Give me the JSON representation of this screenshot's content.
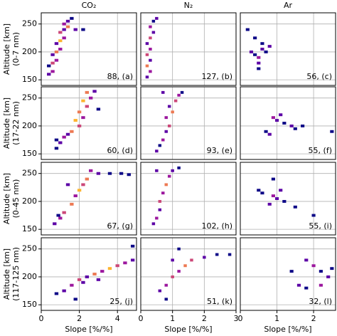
{
  "chart_data": [
    {
      "type": "heatmap",
      "title": "CO₂",
      "ylabel": [
        "Altitude [km]",
        "(0-7 nm)"
      ],
      "annotation": "88, (a)",
      "xlim": [
        0,
        5
      ],
      "ylim": [
        140,
        270
      ],
      "xticks": [
        0,
        2,
        4
      ],
      "yticks": [
        150,
        200,
        250
      ],
      "dx": 0.2,
      "dy": 5,
      "cells": [
        [
          0.4,
          160,
          2
        ],
        [
          0.6,
          165,
          3
        ],
        [
          0.4,
          175,
          1
        ],
        [
          0.6,
          180,
          4
        ],
        [
          0.8,
          185,
          3
        ],
        [
          0.6,
          195,
          2
        ],
        [
          0.8,
          200,
          5
        ],
        [
          1.0,
          205,
          3
        ],
        [
          0.8,
          215,
          2
        ],
        [
          1.0,
          220,
          6
        ],
        [
          1.2,
          225,
          3
        ],
        [
          1.0,
          235,
          4
        ],
        [
          1.2,
          240,
          2
        ],
        [
          1.4,
          245,
          5
        ],
        [
          1.2,
          250,
          3
        ],
        [
          1.4,
          255,
          2
        ],
        [
          1.6,
          260,
          1
        ],
        [
          2.2,
          240,
          1
        ],
        [
          1.8,
          240,
          2
        ]
      ]
    },
    {
      "type": "heatmap",
      "title": "N₂",
      "annotation": "127, (b)",
      "xlim": [
        0,
        3
      ],
      "ylim": [
        140,
        270
      ],
      "xticks": [
        0,
        1,
        2,
        3
      ],
      "yticks": [
        150,
        200,
        250
      ],
      "dx": 0.1,
      "dy": 5,
      "cells": [
        [
          0.2,
          155,
          2
        ],
        [
          0.3,
          165,
          3
        ],
        [
          0.2,
          175,
          5
        ],
        [
          0.3,
          185,
          2
        ],
        [
          0.2,
          195,
          4
        ],
        [
          0.3,
          205,
          3
        ],
        [
          0.2,
          215,
          2
        ],
        [
          0.3,
          225,
          4
        ],
        [
          0.4,
          235,
          2
        ],
        [
          0.3,
          245,
          3
        ],
        [
          0.4,
          255,
          1
        ],
        [
          0.5,
          260,
          2
        ]
      ]
    },
    {
      "type": "heatmap",
      "title": "Ar",
      "annotation": "56, (c)",
      "xlim": [
        0,
        2.6
      ],
      "ylim": [
        140,
        270
      ],
      "xticks": [
        0,
        1,
        2
      ],
      "yticks": [
        150,
        200,
        250
      ],
      "dx": 0.1,
      "dy": 5,
      "cells": [
        [
          0.3,
          200,
          2
        ],
        [
          0.4,
          195,
          1
        ],
        [
          0.5,
          190,
          3
        ],
        [
          0.6,
          205,
          2
        ],
        [
          0.7,
          200,
          1
        ],
        [
          0.8,
          210,
          2
        ],
        [
          0.6,
          215,
          1
        ],
        [
          0.2,
          240,
          1
        ],
        [
          0.4,
          225,
          1
        ],
        [
          0.5,
          170,
          1
        ],
        [
          0.5,
          180,
          2
        ]
      ]
    },
    {
      "type": "heatmap",
      "ylabel": [
        "Altitude [km]",
        "(17-22 nm)"
      ],
      "annotation": "60, (d)",
      "xlim": [
        0,
        5
      ],
      "ylim": [
        140,
        270
      ],
      "xticks": [
        0,
        2,
        4
      ],
      "yticks": [
        150,
        200,
        250
      ],
      "dx": 0.2,
      "dy": 5,
      "cells": [
        [
          0.8,
          160,
          1
        ],
        [
          1.0,
          170,
          2
        ],
        [
          1.2,
          180,
          3
        ],
        [
          1.6,
          190,
          5
        ],
        [
          2.0,
          200,
          4
        ],
        [
          1.8,
          210,
          6
        ],
        [
          2.2,
          215,
          3
        ],
        [
          2.0,
          225,
          5
        ],
        [
          2.4,
          235,
          4
        ],
        [
          2.2,
          245,
          6
        ],
        [
          2.6,
          250,
          3
        ],
        [
          2.4,
          260,
          5
        ],
        [
          2.8,
          262,
          2
        ],
        [
          3.0,
          230,
          1
        ],
        [
          1.4,
          185,
          2
        ],
        [
          0.8,
          175,
          1
        ]
      ]
    },
    {
      "type": "heatmap",
      "annotation": "93, (e)",
      "xlim": [
        0,
        3
      ],
      "ylim": [
        140,
        270
      ],
      "xticks": [
        0,
        1,
        2,
        3
      ],
      "yticks": [
        150,
        200,
        250
      ],
      "dx": 0.1,
      "dy": 5,
      "cells": [
        [
          0.5,
          155,
          2
        ],
        [
          0.6,
          165,
          1
        ],
        [
          0.7,
          175,
          3
        ],
        [
          0.8,
          190,
          2
        ],
        [
          0.9,
          200,
          4
        ],
        [
          0.8,
          215,
          3
        ],
        [
          1.0,
          225,
          5
        ],
        [
          0.9,
          235,
          2
        ],
        [
          1.1,
          245,
          4
        ],
        [
          1.2,
          255,
          3
        ],
        [
          1.3,
          260,
          1
        ],
        [
          0.7,
          260,
          2
        ]
      ]
    },
    {
      "type": "heatmap",
      "annotation": "55, (f)",
      "xlim": [
        0,
        2.6
      ],
      "ylim": [
        140,
        270
      ],
      "xticks": [
        0,
        1,
        2
      ],
      "yticks": [
        150,
        200,
        250
      ],
      "dx": 0.1,
      "dy": 5,
      "cells": [
        [
          1.0,
          210,
          2
        ],
        [
          1.2,
          205,
          1
        ],
        [
          1.4,
          200,
          2
        ],
        [
          1.7,
          200,
          1
        ],
        [
          0.9,
          215,
          3
        ],
        [
          1.1,
          220,
          2
        ],
        [
          0.7,
          190,
          1
        ],
        [
          0.8,
          185,
          2
        ],
        [
          1.5,
          195,
          1
        ],
        [
          2.5,
          190,
          1
        ]
      ]
    },
    {
      "type": "heatmap",
      "ylabel": [
        "Altitude [km]",
        "(0-45 nm)"
      ],
      "annotation": "67, (g)",
      "xlim": [
        0,
        5
      ],
      "ylim": [
        140,
        270
      ],
      "xticks": [
        0,
        2,
        4
      ],
      "yticks": [
        150,
        200,
        250
      ],
      "dx": 0.2,
      "dy": 5,
      "cells": [
        [
          0.7,
          160,
          2
        ],
        [
          1.0,
          170,
          3
        ],
        [
          1.2,
          180,
          4
        ],
        [
          1.6,
          195,
          5
        ],
        [
          1.8,
          210,
          3
        ],
        [
          2.0,
          220,
          6
        ],
        [
          2.2,
          230,
          4
        ],
        [
          2.4,
          240,
          5
        ],
        [
          2.6,
          255,
          3
        ],
        [
          3.0,
          250,
          2
        ],
        [
          3.6,
          250,
          1
        ],
        [
          4.2,
          250,
          1
        ],
        [
          4.6,
          248,
          1
        ],
        [
          1.4,
          230,
          2
        ],
        [
          0.9,
          175,
          1
        ]
      ]
    },
    {
      "type": "heatmap",
      "annotation": "102, (h)",
      "xlim": [
        0,
        3
      ],
      "ylim": [
        140,
        270
      ],
      "xticks": [
        0,
        1,
        2,
        3
      ],
      "yticks": [
        150,
        200,
        250
      ],
      "dx": 0.1,
      "dy": 5,
      "cells": [
        [
          0.4,
          160,
          2
        ],
        [
          0.5,
          170,
          3
        ],
        [
          0.6,
          185,
          2
        ],
        [
          0.6,
          200,
          4
        ],
        [
          0.7,
          215,
          3
        ],
        [
          0.8,
          230,
          5
        ],
        [
          0.9,
          245,
          3
        ],
        [
          1.0,
          255,
          2
        ],
        [
          1.2,
          260,
          1
        ],
        [
          0.5,
          255,
          2
        ]
      ]
    },
    {
      "type": "heatmap",
      "annotation": "55, (i)",
      "xlim": [
        0,
        2.6
      ],
      "ylim": [
        140,
        270
      ],
      "xticks": [
        0,
        1,
        2
      ],
      "yticks": [
        150,
        200,
        250
      ],
      "dx": 0.1,
      "dy": 5,
      "cells": [
        [
          0.9,
          210,
          3
        ],
        [
          1.0,
          205,
          2
        ],
        [
          1.2,
          200,
          1
        ],
        [
          0.6,
          215,
          1
        ],
        [
          0.8,
          195,
          2
        ],
        [
          1.5,
          190,
          1
        ],
        [
          0.9,
          240,
          1
        ],
        [
          1.1,
          220,
          2
        ],
        [
          2.0,
          175,
          1
        ],
        [
          0.5,
          220,
          1
        ]
      ]
    },
    {
      "type": "heatmap",
      "ylabel": [
        "Altitude [km]",
        "(117-125 nm)"
      ],
      "xlabel": "Slope [%/%]",
      "annotation": "25, (j)",
      "xlim": [
        0,
        5
      ],
      "ylim": [
        140,
        270
      ],
      "xticks": [
        0,
        2,
        4
      ],
      "yticks": [
        150,
        200,
        250
      ],
      "dx": 0.2,
      "dy": 5,
      "cells": [
        [
          0.8,
          170,
          1
        ],
        [
          1.2,
          175,
          2
        ],
        [
          1.6,
          185,
          3
        ],
        [
          2.0,
          195,
          4
        ],
        [
          2.4,
          200,
          2
        ],
        [
          2.8,
          205,
          5
        ],
        [
          3.2,
          210,
          3
        ],
        [
          3.6,
          215,
          6
        ],
        [
          4.0,
          220,
          4
        ],
        [
          4.4,
          225,
          3
        ],
        [
          4.8,
          230,
          2
        ],
        [
          4.8,
          255,
          1
        ],
        [
          2.2,
          190,
          2
        ],
        [
          1.8,
          160,
          1
        ],
        [
          3.0,
          195,
          2
        ]
      ]
    },
    {
      "type": "heatmap",
      "xlabel": "Slope [%/%]",
      "annotation": "51, (k)",
      "xlim": [
        0,
        3
      ],
      "ylim": [
        140,
        270
      ],
      "xticks": [
        0,
        1,
        2,
        3
      ],
      "yticks": [
        150,
        200,
        250
      ],
      "dx": 0.1,
      "dy": 5,
      "cells": [
        [
          0.6,
          175,
          2
        ],
        [
          0.8,
          185,
          3
        ],
        [
          1.0,
          200,
          4
        ],
        [
          1.2,
          210,
          3
        ],
        [
          1.4,
          220,
          5
        ],
        [
          1.6,
          230,
          4
        ],
        [
          2.0,
          235,
          2
        ],
        [
          2.4,
          240,
          1
        ],
        [
          2.8,
          240,
          1
        ],
        [
          1.0,
          230,
          2
        ],
        [
          1.2,
          250,
          1
        ],
        [
          0.8,
          160,
          1
        ]
      ]
    },
    {
      "type": "heatmap",
      "xlabel": "Slope [%/%]",
      "annotation": "32, (l)",
      "xlim": [
        0,
        2.6
      ],
      "ylim": [
        140,
        270
      ],
      "xticks": [
        0,
        1,
        2
      ],
      "yticks": [
        150,
        200,
        250
      ],
      "dx": 0.1,
      "dy": 5,
      "cells": [
        [
          1.8,
          230,
          2
        ],
        [
          2.0,
          220,
          3
        ],
        [
          2.2,
          210,
          1
        ],
        [
          2.4,
          200,
          2
        ],
        [
          2.2,
          185,
          3
        ],
        [
          1.8,
          180,
          1
        ],
        [
          1.6,
          185,
          2
        ],
        [
          2.5,
          215,
          1
        ],
        [
          1.4,
          210,
          1
        ]
      ]
    }
  ],
  "colormap": [
    "#0d0887",
    "#5c01a6",
    "#9c179e",
    "#cc4778",
    "#ed7953",
    "#fdb42f",
    "#f0f921"
  ],
  "vmax": 7,
  "grid": true
}
